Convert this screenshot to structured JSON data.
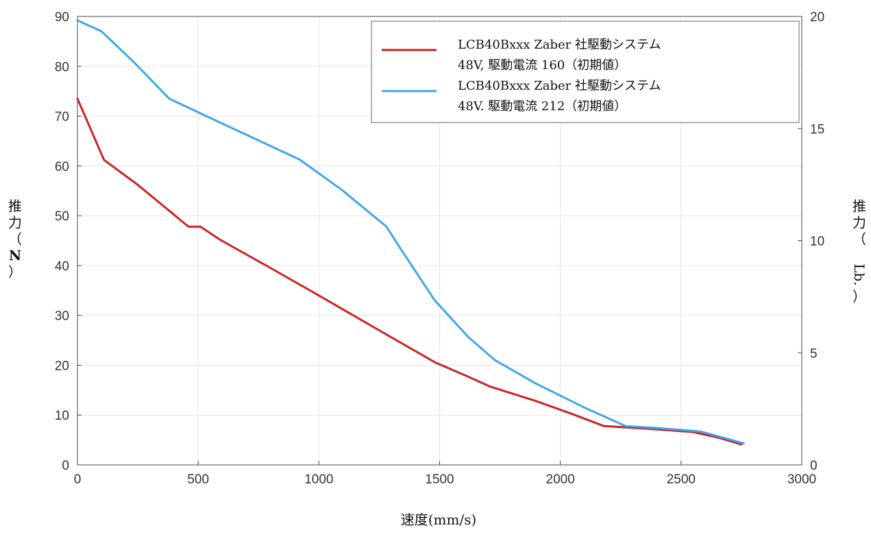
{
  "chart_data": {
    "type": "line",
    "xlabel": "速度(mm/s)",
    "ylabel_left": [
      "推",
      "力",
      "（",
      "N",
      "）"
    ],
    "ylabel_right": [
      "推",
      "力",
      "（",
      "Lb.",
      "）"
    ],
    "xlim": [
      0,
      3000
    ],
    "ylim_left": [
      0,
      90
    ],
    "ylim_right": [
      0,
      20
    ],
    "x_ticks": [
      0,
      500,
      1000,
      1500,
      2000,
      2500,
      3000
    ],
    "y_ticks_left": [
      0,
      10,
      20,
      30,
      40,
      50,
      60,
      70,
      80,
      90
    ],
    "y_ticks_right": [
      0,
      5,
      10,
      15,
      20
    ],
    "grid": true,
    "legend_position": "top-right",
    "series": [
      {
        "legend_lines": [
          "LCB40Bxxx Zaber 社駆動システム",
          "48V, 駆動電流 160（初期値）"
        ],
        "color": "#cc2222",
        "points": [
          [
            0,
            73.5
          ],
          [
            110,
            61.2
          ],
          [
            250,
            56.2
          ],
          [
            460,
            47.8
          ],
          [
            510,
            47.8
          ],
          [
            590,
            45.2
          ],
          [
            800,
            39.5
          ],
          [
            1000,
            34
          ],
          [
            1250,
            27
          ],
          [
            1480,
            20.6
          ],
          [
            1600,
            18.1
          ],
          [
            1710,
            15.7
          ],
          [
            1900,
            12.8
          ],
          [
            2050,
            10.2
          ],
          [
            2180,
            7.8
          ],
          [
            2350,
            7.3
          ],
          [
            2550,
            6.6
          ],
          [
            2660,
            5.4
          ],
          [
            2750,
            4.1
          ]
        ]
      },
      {
        "legend_lines": [
          "LCB40Bxxx Zaber 社駆動システム",
          "48V. 駆動電流 212（初期値）"
        ],
        "color": "#3fa5ee",
        "points": [
          [
            0,
            89.2
          ],
          [
            100,
            87
          ],
          [
            240,
            80.5
          ],
          [
            380,
            73.5
          ],
          [
            600,
            68.5
          ],
          [
            920,
            61.3
          ],
          [
            1100,
            55
          ],
          [
            1280,
            47.8
          ],
          [
            1330,
            44
          ],
          [
            1480,
            33
          ],
          [
            1620,
            25.6
          ],
          [
            1730,
            21
          ],
          [
            1900,
            16.3
          ],
          [
            2100,
            11.5
          ],
          [
            2270,
            7.8
          ],
          [
            2400,
            7.4
          ],
          [
            2580,
            6.7
          ],
          [
            2650,
            5.8
          ],
          [
            2760,
            4.3
          ]
        ]
      }
    ]
  }
}
